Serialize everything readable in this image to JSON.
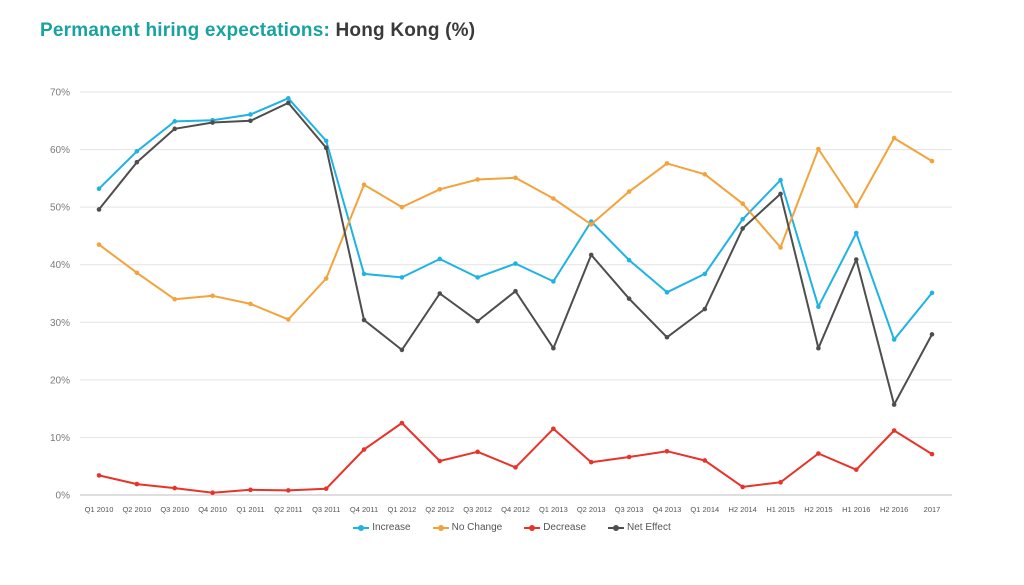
{
  "title": {
    "accent": "Permanent hiring expectations:",
    "rest": "Hong Kong (%)"
  },
  "chart_data": {
    "type": "line",
    "title": "Permanent hiring expectations: Hong Kong (%)",
    "xlabel": "",
    "ylabel": "",
    "ylim": [
      0,
      70
    ],
    "yticks": [
      "0%",
      "10%",
      "20%",
      "30%",
      "40%",
      "50%",
      "60%",
      "70%"
    ],
    "grid": true,
    "legend_position": "bottom-center",
    "categories": [
      "Q1 2010",
      "Q2 2010",
      "Q3 2010",
      "Q4 2010",
      "Q1 2011",
      "Q2 2011",
      "Q3 2011",
      "Q4 2011",
      "Q1 2012",
      "Q2 2012",
      "Q3 2012",
      "Q4 2012",
      "Q1 2013",
      "Q2 2013",
      "Q3 2013",
      "Q4 2013",
      "Q1 2014",
      "H2 2014",
      "H1 2015",
      "H2 2015",
      "H1 2016",
      "H2 2016",
      "2017"
    ],
    "series": [
      {
        "name": "Increase",
        "color": "#1fb3e4",
        "values": [
          53.2,
          59.7,
          64.9,
          65.1,
          66.1,
          68.9,
          61.5,
          38.4,
          37.8,
          41.0,
          37.8,
          40.2,
          37.1,
          47.5,
          40.8,
          35.2,
          38.4,
          47.9,
          54.7,
          32.7,
          45.5,
          27.0,
          35.1
        ]
      },
      {
        "name": "No Change",
        "color": "#f2a33c",
        "values": [
          43.5,
          38.6,
          34.0,
          34.6,
          33.2,
          30.5,
          37.6,
          53.9,
          50.0,
          53.1,
          54.8,
          55.1,
          51.5,
          47.0,
          52.7,
          57.6,
          55.7,
          50.6,
          43.0,
          60.1,
          50.2,
          62.0,
          58.0
        ]
      },
      {
        "name": "Decrease",
        "color": "#e8332a",
        "values": [
          3.4,
          1.9,
          1.2,
          0.4,
          0.9,
          0.8,
          1.1,
          7.9,
          12.5,
          5.9,
          7.5,
          4.8,
          11.5,
          5.7,
          6.6,
          7.6,
          6.0,
          1.4,
          2.2,
          7.2,
          4.4,
          11.2,
          7.1
        ]
      },
      {
        "name": "Net Effect",
        "color": "#4e4e4e",
        "values": [
          49.6,
          57.8,
          63.6,
          64.7,
          65.0,
          68.1,
          60.3,
          30.4,
          25.2,
          35.0,
          30.2,
          35.4,
          25.5,
          41.7,
          34.1,
          27.4,
          32.3,
          46.3,
          52.3,
          25.5,
          40.9,
          15.7,
          27.9
        ]
      }
    ]
  }
}
